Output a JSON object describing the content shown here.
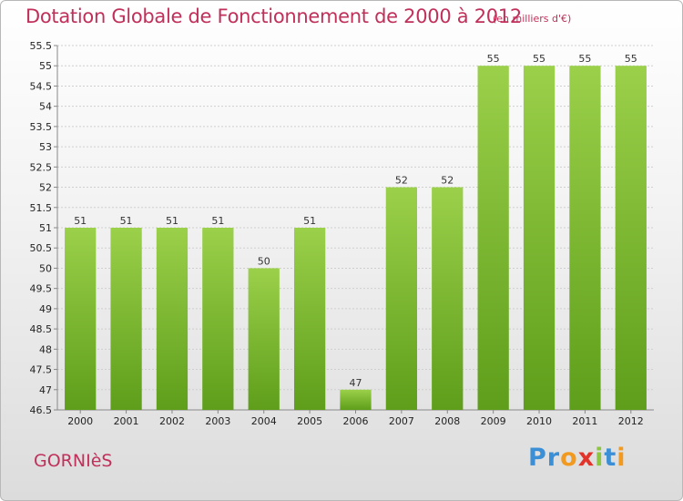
{
  "header": {
    "title": "Dotation Globale de Fonctionnement de 2000 à 2012",
    "unit_note": "(en milliers d'€)"
  },
  "footer": {
    "commune_name": "GORNIèS",
    "logo_text": "Proxiti",
    "logo_letters": [
      {
        "ch": "P",
        "color": "#3a8fd6"
      },
      {
        "ch": "r",
        "color": "#3a8fd6"
      },
      {
        "ch": "o",
        "color": "#f29a1f"
      },
      {
        "ch": "x",
        "color": "#e2332a"
      },
      {
        "ch": "i",
        "color": "#8cc63f"
      },
      {
        "ch": "t",
        "color": "#3a8fd6"
      },
      {
        "ch": "i",
        "color": "#f29a1f"
      }
    ]
  },
  "colors": {
    "title": "#c0305a",
    "bar_top": "#9bd04a",
    "bar_bottom": "#5e9e1a",
    "grid": "#cfcfcf"
  },
  "chart_data": {
    "type": "bar",
    "title": "Dotation Globale de Fonctionnement de 2000 à 2012",
    "subtitle": "(en milliers d'€)",
    "xlabel": "",
    "ylabel": "",
    "categories": [
      "2000",
      "2001",
      "2002",
      "2003",
      "2004",
      "2005",
      "2006",
      "2007",
      "2008",
      "2009",
      "2010",
      "2011",
      "2012"
    ],
    "values": [
      51,
      51,
      51,
      51,
      50,
      51,
      47,
      52,
      52,
      55,
      55,
      55,
      55
    ],
    "data_labels": [
      "51",
      "51",
      "51",
      "51",
      "50",
      "51",
      "47",
      "52",
      "52",
      "55",
      "55",
      "55",
      "55"
    ],
    "ylim": [
      46.5,
      55.5
    ],
    "yticks": [
      46.5,
      47,
      47.5,
      48,
      48.5,
      49,
      49.5,
      50,
      50.5,
      51,
      51.5,
      52,
      52.5,
      53,
      53.5,
      54,
      54.5,
      55,
      55.5
    ],
    "ytick_labels": [
      "46.5",
      "47",
      "47.5",
      "48",
      "48.5",
      "49",
      "49.5",
      "50",
      "50.5",
      "51",
      "51.5",
      "52",
      "52.5",
      "53",
      "53.5",
      "54",
      "54.5",
      "55",
      "55.5"
    ],
    "grid": true
  }
}
